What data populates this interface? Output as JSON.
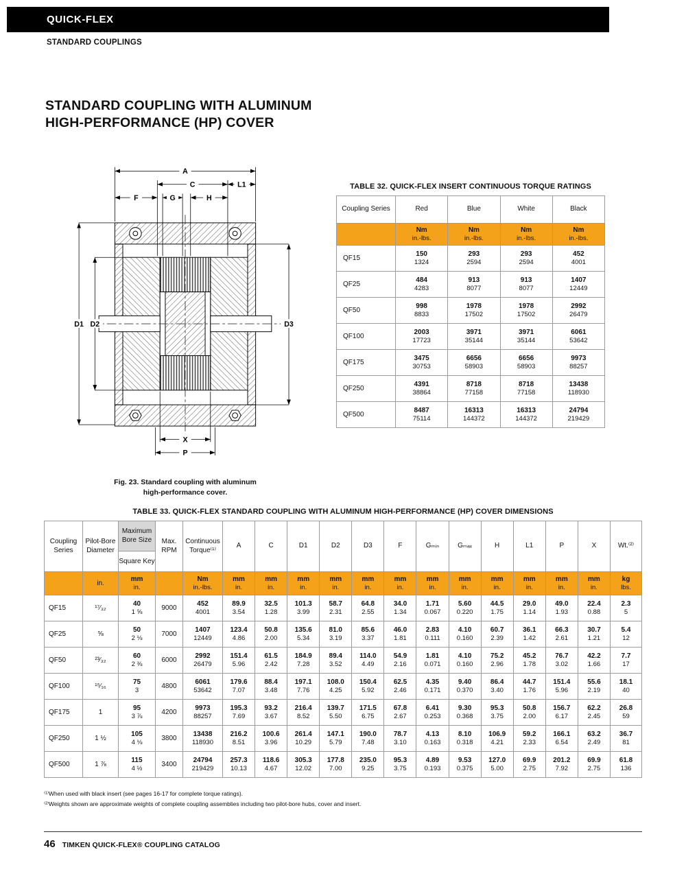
{
  "page": {
    "brand": "QUICK-FLEX",
    "section": "STANDARD COUPLINGS",
    "title_line1": "STANDARD COUPLING WITH ALUMINUM",
    "title_line2": "HIGH-PERFORMANCE (HP) COVER",
    "footer_page": "46",
    "footer_text": "TIMKEN QUICK-FLEX® COUPLING CATALOG"
  },
  "figure": {
    "caption_line1": "Fig. 23. Standard coupling with aluminum",
    "caption_line2": "high-performance cover.",
    "labels": {
      "a": "A",
      "c": "C",
      "l1": "L1",
      "f": "F",
      "g": "G",
      "h": "H",
      "d1": "D1",
      "d2": "D2",
      "d3": "D3",
      "x": "X",
      "p": "P"
    }
  },
  "table32": {
    "title": "TABLE 32. QUICK-FLEX INSERT CONTINUOUS TORQUE RATINGS",
    "col_series": "Coupling Series",
    "colors": [
      "Red",
      "Blue",
      "White",
      "Black"
    ],
    "unit_top": "Nm",
    "unit_bottom": "in.-lbs.",
    "rows": [
      {
        "series": "QF15",
        "nm": [
          "150",
          "293",
          "293",
          "452"
        ],
        "inlbs": [
          "1324",
          "2594",
          "2594",
          "4001"
        ]
      },
      {
        "series": "QF25",
        "nm": [
          "484",
          "913",
          "913",
          "1407"
        ],
        "inlbs": [
          "4283",
          "8077",
          "8077",
          "12449"
        ]
      },
      {
        "series": "QF50",
        "nm": [
          "998",
          "1978",
          "1978",
          "2992"
        ],
        "inlbs": [
          "8833",
          "17502",
          "17502",
          "26479"
        ]
      },
      {
        "series": "QF100",
        "nm": [
          "2003",
          "3971",
          "3971",
          "6061"
        ],
        "inlbs": [
          "17723",
          "35144",
          "35144",
          "53642"
        ]
      },
      {
        "series": "QF175",
        "nm": [
          "3475",
          "6656",
          "6656",
          "9973"
        ],
        "inlbs": [
          "30753",
          "58903",
          "58903",
          "88257"
        ]
      },
      {
        "series": "QF250",
        "nm": [
          "4391",
          "8718",
          "8718",
          "13438"
        ],
        "inlbs": [
          "38864",
          "77158",
          "77158",
          "118930"
        ]
      },
      {
        "series": "QF500",
        "nm": [
          "8487",
          "16313",
          "16313",
          "24794"
        ],
        "inlbs": [
          "75114",
          "144372",
          "144372",
          "219429"
        ]
      }
    ]
  },
  "table33": {
    "title": "TABLE 33. QUICK-FLEX STANDARD COUPLING WITH ALUMINUM HIGH-PERFORMANCE (HP) COVER DIMENSIONS",
    "headers": {
      "series": "Coupling Series",
      "pilot": "Pilot-Bore Diameter",
      "bore_top": "Maximum Bore Size",
      "bore_bottom": "Square Key",
      "rpm": "Max. RPM",
      "torque": "Continuous Torque⁽¹⁾",
      "dims": [
        "A",
        "C",
        "D1",
        "D2",
        "D3",
        "F",
        "Gₘᵢₙ",
        "Gₘₐₓ",
        "H",
        "L1",
        "P",
        "X"
      ],
      "wt": "Wt.⁽²⁾"
    },
    "units": {
      "pilot": "in.",
      "bore": [
        "mm",
        "in."
      ],
      "torque": [
        "Nm",
        "in.-lbs."
      ],
      "dim": [
        "mm",
        "in."
      ],
      "wt": [
        "kg",
        "lbs."
      ]
    },
    "rows": [
      {
        "series": "QF15",
        "pilot": "¹⁷⁄₃₂",
        "bore": [
          "40",
          "1 ⅝"
        ],
        "rpm": "9000",
        "torque": [
          "452",
          "4001"
        ],
        "dims": [
          [
            "89.9",
            "3.54"
          ],
          [
            "32.5",
            "1.28"
          ],
          [
            "101.3",
            "3.99"
          ],
          [
            "58.7",
            "2.31"
          ],
          [
            "64.8",
            "2.55"
          ],
          [
            "34.0",
            "1.34"
          ],
          [
            "1.71",
            "0.067"
          ],
          [
            "5.60",
            "0.220"
          ],
          [
            "44.5",
            "1.75"
          ],
          [
            "29.0",
            "1.14"
          ],
          [
            "49.0",
            "1.93"
          ],
          [
            "22.4",
            "0.88"
          ]
        ],
        "wt": [
          "2.3",
          "5"
        ]
      },
      {
        "series": "QF25",
        "pilot": "⅝",
        "bore": [
          "50",
          "2 ⅛"
        ],
        "rpm": "7000",
        "torque": [
          "1407",
          "12449"
        ],
        "dims": [
          [
            "123.4",
            "4.86"
          ],
          [
            "50.8",
            "2.00"
          ],
          [
            "135.6",
            "5.34"
          ],
          [
            "81.0",
            "3.19"
          ],
          [
            "85.6",
            "3.37"
          ],
          [
            "46.0",
            "1.81"
          ],
          [
            "2.83",
            "0.111"
          ],
          [
            "4.10",
            "0.160"
          ],
          [
            "60.7",
            "2.39"
          ],
          [
            "36.1",
            "1.42"
          ],
          [
            "66.3",
            "2.61"
          ],
          [
            "30.7",
            "1.21"
          ]
        ],
        "wt": [
          "5.4",
          "12"
        ]
      },
      {
        "series": "QF50",
        "pilot": "²³⁄₃₂",
        "bore": [
          "60",
          "2 ⅜"
        ],
        "rpm": "6000",
        "torque": [
          "2992",
          "26479"
        ],
        "dims": [
          [
            "151.4",
            "5.96"
          ],
          [
            "61.5",
            "2.42"
          ],
          [
            "184.9",
            "7.28"
          ],
          [
            "89.4",
            "3.52"
          ],
          [
            "114.0",
            "4.49"
          ],
          [
            "54.9",
            "2.16"
          ],
          [
            "1.81",
            "0.071"
          ],
          [
            "4.10",
            "0.160"
          ],
          [
            "75.2",
            "2.96"
          ],
          [
            "45.2",
            "1.78"
          ],
          [
            "76.7",
            "3.02"
          ],
          [
            "42.2",
            "1.66"
          ]
        ],
        "wt": [
          "7.7",
          "17"
        ]
      },
      {
        "series": "QF100",
        "pilot": "¹⁵⁄₁₆",
        "bore": [
          "75",
          "3"
        ],
        "rpm": "4800",
        "torque": [
          "6061",
          "53642"
        ],
        "dims": [
          [
            "179.6",
            "7.07"
          ],
          [
            "88.4",
            "3.48"
          ],
          [
            "197.1",
            "7.76"
          ],
          [
            "108.0",
            "4.25"
          ],
          [
            "150.4",
            "5.92"
          ],
          [
            "62.5",
            "2.46"
          ],
          [
            "4.35",
            "0.171"
          ],
          [
            "9.40",
            "0.370"
          ],
          [
            "86.4",
            "3.40"
          ],
          [
            "44.7",
            "1.76"
          ],
          [
            "151.4",
            "5.96"
          ],
          [
            "55.6",
            "2.19"
          ]
        ],
        "wt": [
          "18.1",
          "40"
        ]
      },
      {
        "series": "QF175",
        "pilot": "1",
        "bore": [
          "95",
          "3 ⅞"
        ],
        "rpm": "4200",
        "torque": [
          "9973",
          "88257"
        ],
        "dims": [
          [
            "195.3",
            "7.69"
          ],
          [
            "93.2",
            "3.67"
          ],
          [
            "216.4",
            "8.52"
          ],
          [
            "139.7",
            "5.50"
          ],
          [
            "171.5",
            "6.75"
          ],
          [
            "67.8",
            "2.67"
          ],
          [
            "6.41",
            "0.253"
          ],
          [
            "9.30",
            "0.368"
          ],
          [
            "95.3",
            "3.75"
          ],
          [
            "50.8",
            "2.00"
          ],
          [
            "156.7",
            "6.17"
          ],
          [
            "62.2",
            "2.45"
          ]
        ],
        "wt": [
          "26.8",
          "59"
        ]
      },
      {
        "series": "QF250",
        "pilot": "1 ½",
        "bore": [
          "105",
          "4 ⅛"
        ],
        "rpm": "3800",
        "torque": [
          "13438",
          "118930"
        ],
        "dims": [
          [
            "216.2",
            "8.51"
          ],
          [
            "100.6",
            "3.96"
          ],
          [
            "261.4",
            "10.29"
          ],
          [
            "147.1",
            "5.79"
          ],
          [
            "190.0",
            "7.48"
          ],
          [
            "78.7",
            "3.10"
          ],
          [
            "4.13",
            "0.163"
          ],
          [
            "8.10",
            "0.318"
          ],
          [
            "106.9",
            "4.21"
          ],
          [
            "59.2",
            "2.33"
          ],
          [
            "166.1",
            "6.54"
          ],
          [
            "63.2",
            "2.49"
          ]
        ],
        "wt": [
          "36.7",
          "81"
        ]
      },
      {
        "series": "QF500",
        "pilot": "1 ⅞",
        "bore": [
          "115",
          "4 ½"
        ],
        "rpm": "3400",
        "torque": [
          "24794",
          "219429"
        ],
        "dims": [
          [
            "257.3",
            "10.13"
          ],
          [
            "118.6",
            "4.67"
          ],
          [
            "305.3",
            "12.02"
          ],
          [
            "177.8",
            "7.00"
          ],
          [
            "235.0",
            "9.25"
          ],
          [
            "95.3",
            "3.75"
          ],
          [
            "4.89",
            "0.193"
          ],
          [
            "9.53",
            "0.375"
          ],
          [
            "127.0",
            "5.00"
          ],
          [
            "69.9",
            "2.75"
          ],
          [
            "201.2",
            "7.92"
          ],
          [
            "69.9",
            "2.75"
          ]
        ],
        "wt": [
          "61.8",
          "136"
        ]
      }
    ]
  },
  "footnotes": [
    "⁽¹⁾When used with black insert (see pages 16-17 for complete torque ratings).",
    "⁽²⁾Weights shown are approximate weights of complete coupling assemblies including two pilot-bore hubs, cover and insert."
  ]
}
